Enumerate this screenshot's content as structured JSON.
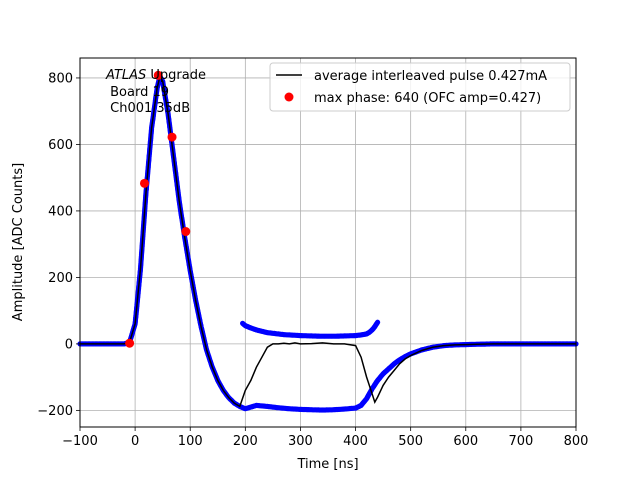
{
  "chart_data": {
    "type": "scatter",
    "xlabel": "Time [ns]",
    "ylabel": "Amplitude [ADC Counts]",
    "xlim": [
      -100,
      800
    ],
    "ylim": [
      -250,
      860
    ],
    "grid": true,
    "legend_placement": "top-right",
    "xticks": [
      -100,
      0,
      100,
      200,
      300,
      400,
      500,
      600,
      700,
      800
    ],
    "yticks": [
      -200,
      0,
      200,
      400,
      600,
      800
    ],
    "annotation": {
      "italic": "ATLAS",
      "rest": " Upgrade",
      "line2": " Board 19",
      "line3": " Ch001 35dB"
    },
    "series": [
      {
        "name": "average interleaved pulse 0.427mA",
        "kind": "line",
        "color": "#000000",
        "x": [
          -100,
          -20,
          -10,
          0,
          10,
          20,
          30,
          40,
          45,
          50,
          60,
          70,
          80,
          90,
          100,
          110,
          120,
          130,
          140,
          150,
          160,
          170,
          180,
          190,
          200,
          210,
          220,
          230,
          240,
          250,
          260,
          270,
          280,
          290,
          300,
          320,
          340,
          360,
          380,
          400,
          410,
          420,
          430,
          435,
          440,
          450,
          460,
          470,
          480,
          490,
          500,
          520,
          540,
          560,
          580,
          600,
          620,
          650,
          700,
          750,
          800
        ],
        "y": [
          0,
          0,
          5,
          60,
          230,
          460,
          650,
          770,
          805,
          790,
          690,
          560,
          430,
          320,
          220,
          130,
          50,
          -20,
          -70,
          -110,
          -140,
          -162,
          -178,
          -188,
          -140,
          -110,
          -70,
          -40,
          -10,
          0,
          0,
          2,
          0,
          3,
          0,
          1,
          3,
          0,
          0,
          -5,
          -40,
          -100,
          -150,
          -175,
          -160,
          -125,
          -100,
          -80,
          -60,
          -45,
          -35,
          -20,
          -10,
          -5,
          -3,
          -2,
          -1,
          0,
          0,
          0,
          0
        ]
      },
      {
        "name": "",
        "kind": "points",
        "color": "#0000ff",
        "x": [
          -100,
          -20,
          -10,
          0,
          10,
          20,
          30,
          40,
          45,
          50,
          60,
          70,
          80,
          90,
          100,
          110,
          120,
          130,
          140,
          150,
          160,
          170,
          180,
          190,
          200,
          220,
          240,
          260,
          280,
          300,
          320,
          340,
          360,
          380,
          400,
          410,
          420,
          430,
          440,
          450,
          460,
          470,
          480,
          490,
          500,
          520,
          540,
          560,
          580,
          600,
          620,
          650,
          700,
          750,
          800
        ],
        "y": [
          0,
          0,
          5,
          60,
          230,
          460,
          650,
          770,
          805,
          790,
          690,
          560,
          430,
          320,
          220,
          130,
          50,
          -20,
          -70,
          -110,
          -140,
          -162,
          -178,
          -188,
          -195,
          -185,
          -188,
          -192,
          -195,
          -197,
          -198,
          -199,
          -198,
          -196,
          -193,
          -185,
          -165,
          -135,
          -110,
          -90,
          -75,
          -60,
          -48,
          -38,
          -30,
          -18,
          -10,
          -5,
          -3,
          -2,
          -1,
          0,
          0,
          0,
          0
        ]
      },
      {
        "name": "",
        "kind": "points",
        "color": "#0000ff",
        "x": [
          195,
          200,
          210,
          220,
          230,
          240,
          250,
          260,
          270,
          280,
          290,
          300,
          320,
          340,
          360,
          380,
          400,
          410,
          420,
          425,
          430,
          435,
          440
        ],
        "y": [
          62,
          55,
          48,
          42,
          38,
          34,
          32,
          30,
          28,
          27,
          26,
          25,
          24,
          23,
          23,
          24,
          25,
          27,
          30,
          35,
          42,
          52,
          65
        ]
      },
      {
        "name": "max phase: 640 (OFC amp=0.427)",
        "kind": "markers",
        "color": "#ff0000",
        "x": [
          -10,
          17,
          42,
          67,
          92
        ],
        "y": [
          2,
          483,
          808,
          622,
          338
        ]
      }
    ]
  }
}
